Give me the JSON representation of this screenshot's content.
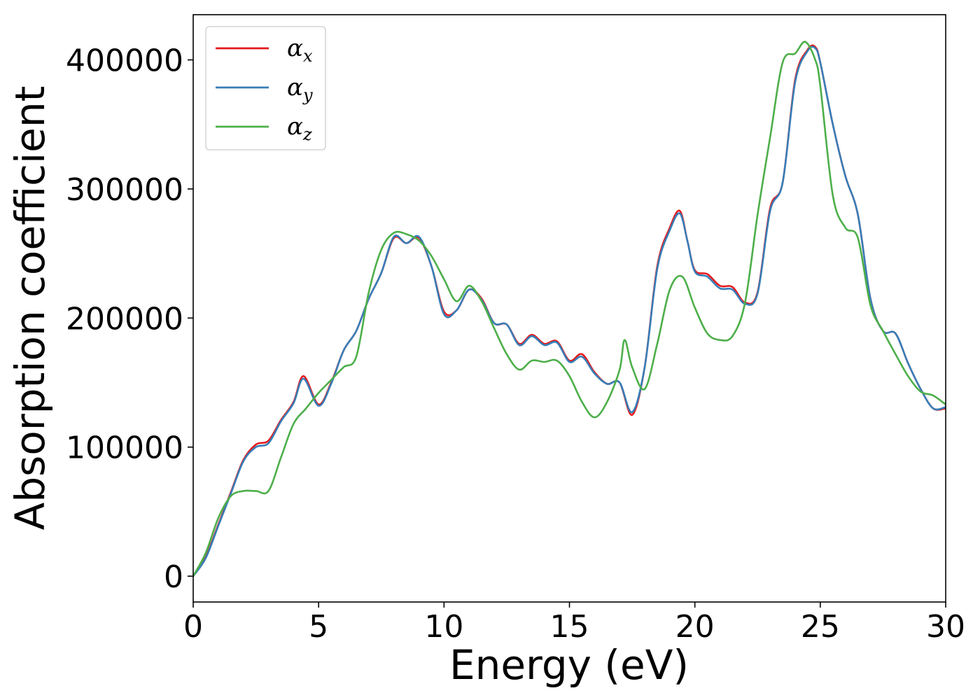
{
  "chart_data": {
    "type": "line",
    "xlabel": "Energy (eV)",
    "ylabel": "Absorption coefficient",
    "xlim": [
      0,
      30
    ],
    "ylim": [
      -20000,
      435000
    ],
    "xticks": [
      0,
      5,
      10,
      15,
      20,
      25,
      30
    ],
    "yticks": [
      0,
      100000,
      200000,
      300000,
      400000
    ],
    "grid": false,
    "legend_position": "top-left",
    "series": [
      {
        "name": "α_x",
        "name_base": "α",
        "name_sub": "x",
        "color": "#e41a1c",
        "x": [
          0,
          0.5,
          1,
          1.5,
          2,
          2.5,
          3,
          3.5,
          4,
          4.4,
          5,
          5.5,
          6,
          6.5,
          7,
          7.5,
          8,
          8.5,
          9,
          9.5,
          10,
          10.5,
          11,
          11.5,
          12,
          12.5,
          13,
          13.5,
          14,
          14.5,
          15,
          15.5,
          16,
          16.5,
          17,
          17.5,
          18,
          18.5,
          19,
          19.4,
          19.7,
          20,
          20.5,
          21,
          21.5,
          22,
          22.5,
          23,
          23.5,
          24,
          24.5,
          24.8,
          25,
          25.5,
          26,
          26.5,
          27,
          27.5,
          28,
          28.5,
          29,
          29.5,
          30
        ],
        "y": [
          0,
          15000,
          40000,
          65000,
          90000,
          102000,
          105000,
          121000,
          135000,
          155000,
          133000,
          150000,
          175000,
          190000,
          215000,
          235000,
          262000,
          258000,
          262000,
          240000,
          205000,
          206000,
          222000,
          215000,
          196000,
          195000,
          180000,
          187000,
          180000,
          182000,
          167000,
          172000,
          158000,
          149000,
          150000,
          125000,
          162000,
          240000,
          270000,
          283000,
          260000,
          237000,
          234000,
          225000,
          224000,
          212000,
          220000,
          285000,
          305000,
          385000,
          408000,
          410000,
          398000,
          350000,
          310000,
          280000,
          215000,
          190000,
          188000,
          165000,
          145000,
          130000,
          130000
        ]
      },
      {
        "name": "α_y",
        "name_base": "α",
        "name_sub": "y",
        "color": "#377eb8",
        "x": [
          0,
          0.5,
          1,
          1.5,
          2,
          2.5,
          3,
          3.5,
          4,
          4.4,
          5,
          5.5,
          6,
          6.5,
          7,
          7.5,
          8,
          8.5,
          9,
          9.5,
          10,
          10.5,
          11,
          11.5,
          12,
          12.5,
          13,
          13.5,
          14,
          14.5,
          15,
          15.5,
          16,
          16.5,
          17,
          17.5,
          18,
          18.5,
          19,
          19.4,
          19.7,
          20,
          20.5,
          21,
          21.5,
          22,
          22.5,
          23,
          23.5,
          24,
          24.5,
          24.8,
          25,
          25.5,
          26,
          26.5,
          27,
          27.5,
          28,
          28.5,
          29,
          29.5,
          30
        ],
        "y": [
          0,
          14000,
          39000,
          64000,
          89000,
          100000,
          103000,
          120000,
          134000,
          153000,
          132000,
          149000,
          175000,
          190000,
          215000,
          235000,
          263000,
          258000,
          263000,
          240000,
          203000,
          206000,
          222000,
          214000,
          196000,
          195000,
          179000,
          186000,
          179000,
          181000,
          166000,
          170000,
          157000,
          149000,
          150000,
          127000,
          162000,
          238000,
          268000,
          281000,
          260000,
          236000,
          232000,
          223000,
          222000,
          211000,
          219000,
          283000,
          305000,
          383000,
          407000,
          409000,
          398000,
          350000,
          310000,
          280000,
          215000,
          190000,
          188000,
          165000,
          145000,
          130000,
          131000
        ]
      },
      {
        "name": "α_z",
        "name_base": "α",
        "name_sub": "z",
        "color": "#4daf4a",
        "x": [
          0,
          0.5,
          1,
          1.5,
          2,
          2.5,
          3,
          3.5,
          4,
          4.5,
          5,
          5.5,
          6,
          6.5,
          7,
          7.5,
          8,
          8.5,
          9,
          9.5,
          10,
          10.5,
          11,
          11.5,
          12,
          12.5,
          13,
          13.5,
          14,
          14.5,
          15,
          15.5,
          16,
          16.5,
          17,
          17.2,
          17.5,
          18,
          18.5,
          19,
          19.5,
          20,
          20.5,
          21,
          21.5,
          22,
          22.5,
          23,
          23.5,
          24,
          24.4,
          24.8,
          25,
          25.5,
          26,
          26.5,
          27,
          27.5,
          28,
          28.5,
          29,
          29.5,
          30
        ],
        "y": [
          0,
          18000,
          45000,
          62000,
          66000,
          66000,
          66000,
          92000,
          118000,
          130000,
          142000,
          152000,
          162000,
          170000,
          220000,
          253000,
          266000,
          265000,
          260000,
          248000,
          230000,
          213000,
          225000,
          213000,
          192000,
          172000,
          160000,
          167000,
          166000,
          167000,
          155000,
          135000,
          123000,
          135000,
          160000,
          183000,
          162000,
          145000,
          180000,
          222000,
          232000,
          208000,
          188000,
          183000,
          186000,
          212000,
          280000,
          340000,
          398000,
          405000,
          414000,
          400000,
          380000,
          295000,
          270000,
          262000,
          210000,
          190000,
          172000,
          155000,
          143000,
          140000,
          133000
        ]
      }
    ]
  }
}
